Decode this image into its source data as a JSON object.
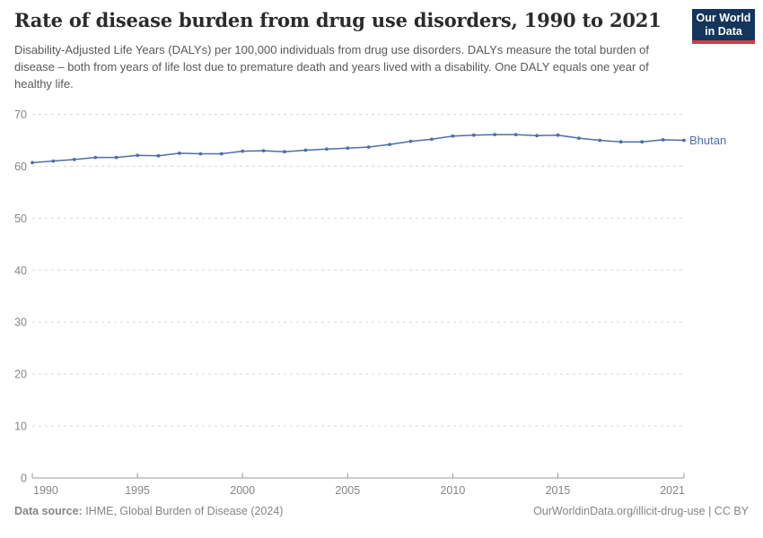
{
  "header": {
    "title": "Rate of disease burden from drug use disorders, 1990 to 2021",
    "subtitle": "Disability-Adjusted Life Years (DALYs) per 100,000 individuals from drug use disorders. DALYs measure the total burden of disease – both from years of life lost due to premature death and years lived with a disability. One DALY equals one year of healthy life.",
    "logo": {
      "line1": "Our World",
      "line2": "in Data"
    }
  },
  "chart_data": {
    "type": "line",
    "title": "Rate of disease burden from drug use disorders, 1990 to 2021",
    "xlabel": "",
    "ylabel": "DALYs per 100,000 individuals",
    "xlim": [
      1990,
      2021
    ],
    "ylim": [
      0,
      70
    ],
    "x_ticks": [
      1990,
      1995,
      2000,
      2005,
      2010,
      2015,
      2021
    ],
    "y_ticks": [
      0,
      10,
      20,
      30,
      40,
      50,
      60,
      70
    ],
    "grid": "horizontal-dashed",
    "legend_position": "end-of-line-label",
    "x": [
      1990,
      1991,
      1992,
      1993,
      1994,
      1995,
      1996,
      1997,
      1998,
      1999,
      2000,
      2001,
      2002,
      2003,
      2004,
      2005,
      2006,
      2007,
      2008,
      2009,
      2010,
      2011,
      2012,
      2013,
      2014,
      2015,
      2016,
      2017,
      2018,
      2019,
      2020,
      2021
    ],
    "series": [
      {
        "name": "Bhutan",
        "color": "#4e6fa5",
        "values": [
          60.7,
          61.0,
          61.3,
          61.7,
          61.7,
          62.1,
          62.0,
          62.5,
          62.4,
          62.4,
          62.9,
          63.0,
          62.8,
          63.1,
          63.3,
          63.5,
          63.7,
          64.2,
          64.8,
          65.2,
          65.8,
          66.0,
          66.1,
          66.1,
          65.9,
          66.0,
          65.4,
          65.0,
          64.7,
          64.7,
          65.1,
          65.0
        ]
      }
    ]
  },
  "footer": {
    "source_label": "Data source:",
    "source_value": " IHME, Global Burden of Disease (2024)",
    "note": "OurWorldinData.org/illicit-drug-use | CC BY"
  },
  "colors": {
    "line": "#4e6fa5",
    "grid": "#d8d8d8",
    "axis": "#999999",
    "tick_text": "#858585",
    "logo_bg": "#14355c",
    "logo_stripe": "#d73c4c"
  }
}
